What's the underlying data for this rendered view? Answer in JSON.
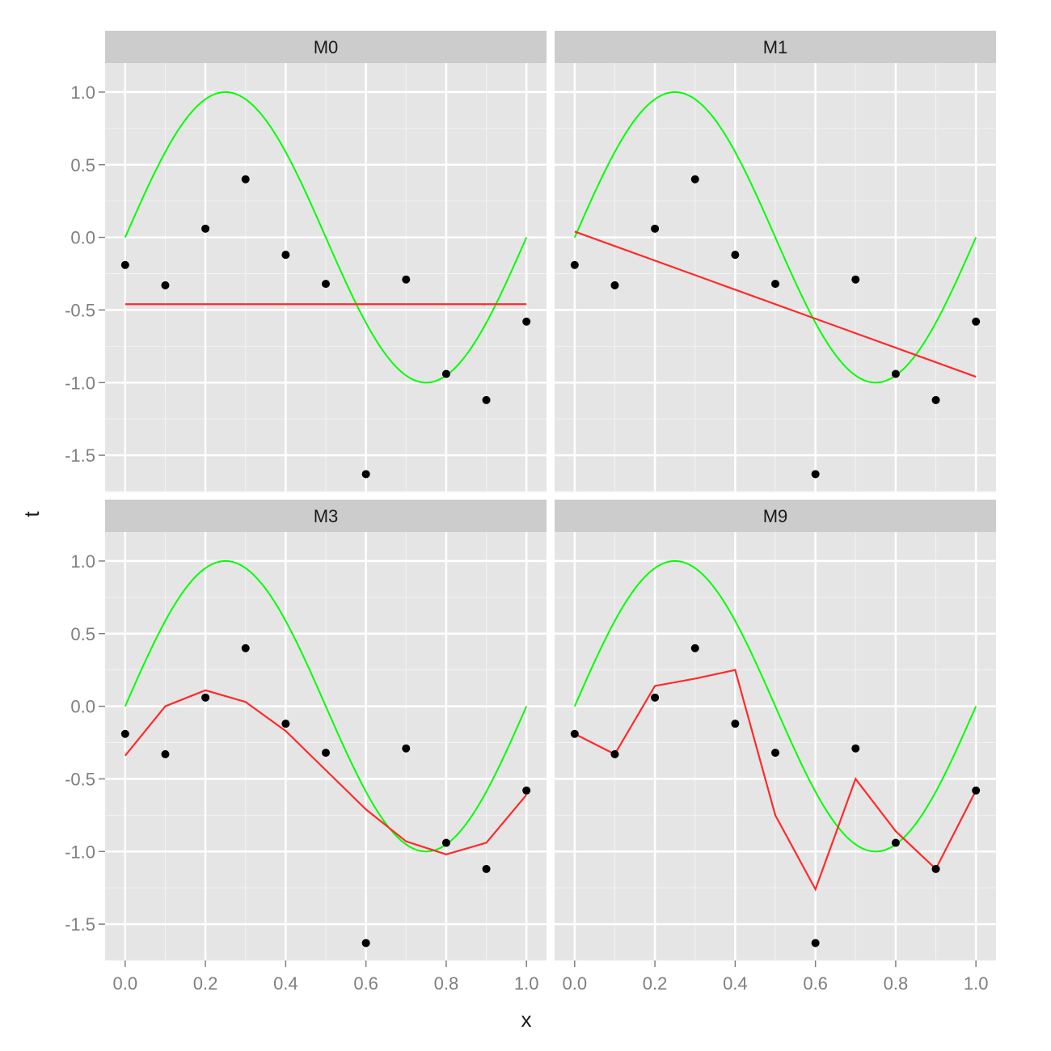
{
  "chart_data": {
    "type": "line",
    "xlabel": "x",
    "ylabel": "t",
    "xlim": [
      -0.05,
      1.05
    ],
    "ylim": [
      -1.75,
      1.2
    ],
    "x_ticks": [
      "0.0",
      "0.2",
      "0.4",
      "0.6",
      "0.8",
      "1.0"
    ],
    "y_ticks": [
      "1.0",
      "0.5",
      "0.0",
      "-0.5",
      "-1.0",
      "-1.5"
    ],
    "grid": true,
    "layout": "facet_wrap 2x2",
    "colors": {
      "true_function": "#00ff00",
      "fitted": "#ff2a2a",
      "points": "#000000",
      "panel_background": "#e5e5e5",
      "strip_background": "#cccccc",
      "grid": "#ffffff"
    },
    "points": {
      "x": [
        0.0,
        0.1,
        0.2,
        0.3,
        0.4,
        0.5,
        0.6,
        0.7,
        0.8,
        0.9,
        1.0
      ],
      "y": [
        -0.19,
        -0.33,
        0.06,
        0.4,
        -0.12,
        -0.32,
        -1.63,
        -0.29,
        -0.94,
        -1.12,
        -0.58
      ]
    },
    "true_function": "sin(2*pi*x)",
    "panels": [
      {
        "title": "M0",
        "fit": {
          "x": [
            0.0,
            1.0
          ],
          "y": [
            -0.46,
            -0.46
          ]
        }
      },
      {
        "title": "M1",
        "fit": {
          "x": [
            0.0,
            1.0
          ],
          "y": [
            0.04,
            -0.96
          ]
        }
      },
      {
        "title": "M3",
        "fit": {
          "x": [
            0.0,
            0.1,
            0.2,
            0.3,
            0.4,
            0.5,
            0.6,
            0.7,
            0.8,
            0.9,
            1.0
          ],
          "y": [
            -0.34,
            0.0,
            0.11,
            0.03,
            -0.17,
            -0.44,
            -0.71,
            -0.93,
            -1.02,
            -0.94,
            -0.61
          ]
        }
      },
      {
        "title": "M9",
        "fit": {
          "x": [
            0.0,
            0.1,
            0.2,
            0.3,
            0.4,
            0.5,
            0.6,
            0.7,
            0.8,
            0.9,
            1.0
          ],
          "y": [
            -0.19,
            -0.33,
            0.14,
            0.19,
            0.25,
            -0.75,
            -1.26,
            -0.5,
            -0.86,
            -1.12,
            -0.58
          ]
        }
      }
    ]
  }
}
